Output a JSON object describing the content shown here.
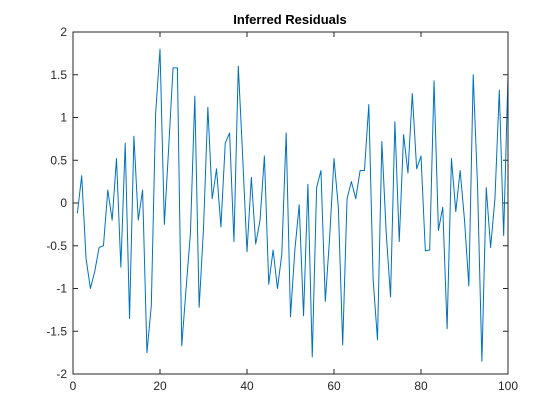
{
  "chart_data": {
    "type": "line",
    "title": "Inferred Residuals",
    "x": [
      1,
      2,
      3,
      4,
      5,
      6,
      7,
      8,
      9,
      10,
      11,
      12,
      13,
      14,
      15,
      16,
      17,
      18,
      19,
      20,
      21,
      22,
      23,
      24,
      25,
      26,
      27,
      28,
      29,
      30,
      31,
      32,
      33,
      34,
      35,
      36,
      37,
      38,
      39,
      40,
      41,
      42,
      43,
      44,
      45,
      46,
      47,
      48,
      49,
      50,
      51,
      52,
      53,
      54,
      55,
      56,
      57,
      58,
      59,
      60,
      61,
      62,
      63,
      64,
      65,
      66,
      67,
      68,
      69,
      70,
      71,
      72,
      73,
      74,
      75,
      76,
      77,
      78,
      79,
      80,
      81,
      82,
      83,
      84,
      85,
      86,
      87,
      88,
      89,
      90,
      91,
      92,
      93,
      94,
      95,
      96,
      97,
      98,
      99,
      100
    ],
    "values": [
      -0.12,
      0.32,
      -0.65,
      -1.0,
      -0.8,
      -0.52,
      -0.5,
      0.15,
      -0.2,
      0.52,
      -0.75,
      0.7,
      -1.35,
      0.78,
      -0.2,
      0.15,
      -1.75,
      -1.2,
      1.05,
      1.8,
      -0.25,
      0.65,
      1.58,
      1.58,
      -1.67,
      -1.0,
      -0.35,
      1.25,
      -1.22,
      -0.3,
      1.12,
      0.05,
      0.4,
      -0.28,
      0.7,
      0.82,
      -0.45,
      1.6,
      0.55,
      -0.57,
      0.3,
      -0.48,
      -0.2,
      0.55,
      -0.95,
      -0.55,
      -1.0,
      -0.6,
      0.82,
      -1.33,
      -0.55,
      -0.02,
      -1.32,
      0.22,
      -1.8,
      0.18,
      0.38,
      -1.15,
      -0.4,
      0.52,
      -0.05,
      -1.66,
      0.05,
      0.25,
      0.05,
      0.38,
      0.38,
      1.15,
      -0.9,
      -1.6,
      0.72,
      -0.35,
      -1.1,
      0.95,
      -0.45,
      0.8,
      0.35,
      1.28,
      0.4,
      0.55,
      -0.56,
      -0.55,
      1.43,
      -0.32,
      -0.05,
      -1.47,
      0.52,
      -0.1,
      0.38,
      -0.2,
      -0.97,
      1.5,
      0.2,
      -1.85,
      0.18,
      -0.52,
      0.05,
      1.32,
      -0.38,
      1.5
    ],
    "color": "#0072bd",
    "xlim": [
      0,
      100
    ],
    "xticks": [
      0,
      20,
      40,
      60,
      80,
      100
    ],
    "ylim": [
      -2,
      2
    ],
    "yticks": [
      -2,
      -1.5,
      -1,
      -0.5,
      0,
      0.5,
      1,
      1.5,
      2
    ]
  }
}
